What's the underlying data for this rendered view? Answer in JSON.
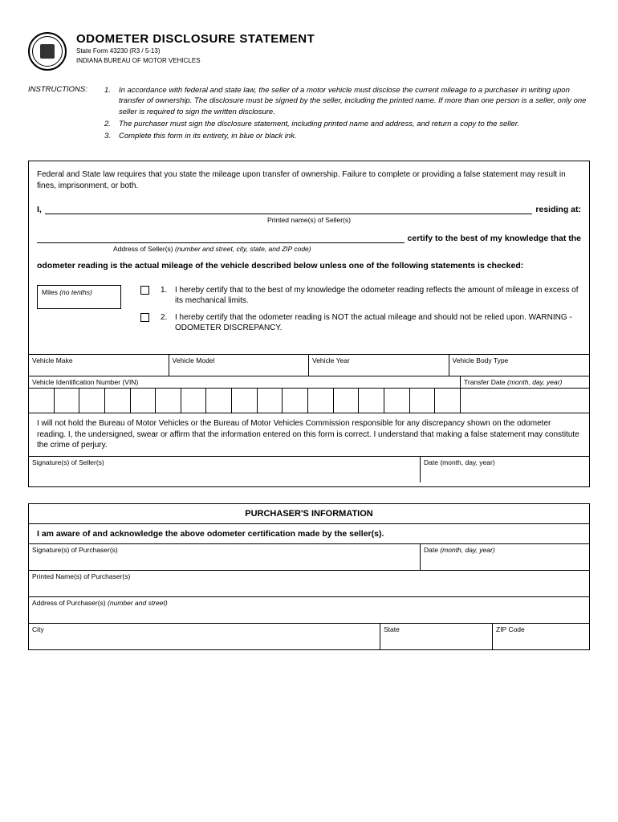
{
  "header": {
    "title": "ODOMETER DISCLOSURE STATEMENT",
    "form_line": "State Form 43230 (R3 / 5-13)",
    "agency": "INDIANA BUREAU OF MOTOR VEHICLES"
  },
  "instructions": {
    "label": "INSTRUCTIONS:",
    "items": [
      "In accordance with federal and state law, the seller of a motor vehicle must disclose the current mileage to a purchaser in writing upon transfer of ownership. The disclosure must be signed by the seller, including the printed name.  If more than one person is a seller, only one seller is required to sign the written disclosure.",
      "The purchaser must sign the disclosure statement, including printed name and address, and return a copy to the seller.",
      "Complete this form in its entirety, in blue or black ink."
    ]
  },
  "main": {
    "intro": "Federal and State law requires that you state the mileage upon transfer of ownership. Failure to complete or providing a false statement may result in fines, imprisonment, or both.",
    "i_prefix": "I,",
    "residing": "residing at:",
    "seller_name_hint": "Printed name(s) of Seller(s)",
    "certify": "certify to the best of my knowledge that the",
    "address_hint_prefix": "Address of Seller(s) ",
    "address_hint_italic": "(number and street, city, state, and ZIP code)",
    "statement": "odometer reading is the actual mileage of the vehicle described below unless one of the following statements is checked:",
    "miles_label": "Miles ",
    "miles_hint": "(no tenths)",
    "checks": [
      "I hereby certify that to the best of my knowledge the odometer reading reflects the amount of mileage in excess of its mechanical limits.",
      "I hereby certify that the odometer reading is NOT the actual mileage and should not be relied upon. WARNING - ODOMETER DISCREPANCY."
    ],
    "vehicle": {
      "make": "Vehicle Make",
      "model": "Vehicle Model",
      "year": "Vehicle Year",
      "body": "Vehicle Body Type",
      "vin": "Vehicle Identification Number (VIN)",
      "transfer": "Transfer Date ",
      "transfer_hint": "(month, day, year)"
    },
    "affirmation": "I will not hold the Bureau of Motor Vehicles or the Bureau of Motor Vehicles Commission responsible for any discrepancy shown on the odometer reading. I, the undersigned, swear or affirm that the information entered on this form is correct. I understand that making a false statement may constitute the crime of perjury.",
    "sig_seller": "Signature(s) of Seller(s)",
    "date_label": "Date ",
    "date_hint": "(month, day, year)"
  },
  "purchaser": {
    "title": "PURCHASER'S INFORMATION",
    "ack": "I am aware of and acknowledge the above odometer certification made by the seller(s).",
    "sig": "Signature(s) of Purchaser(s)",
    "date_label": "Date ",
    "date_hint": "(month, day, year)",
    "printed": "Printed Name(s) of Purchaser(s)",
    "address": "Address of Purchaser(s) ",
    "address_hint": "(number and street)",
    "city": "City",
    "state": "State",
    "zip": "ZIP Code"
  },
  "vin_cell_count": 17
}
